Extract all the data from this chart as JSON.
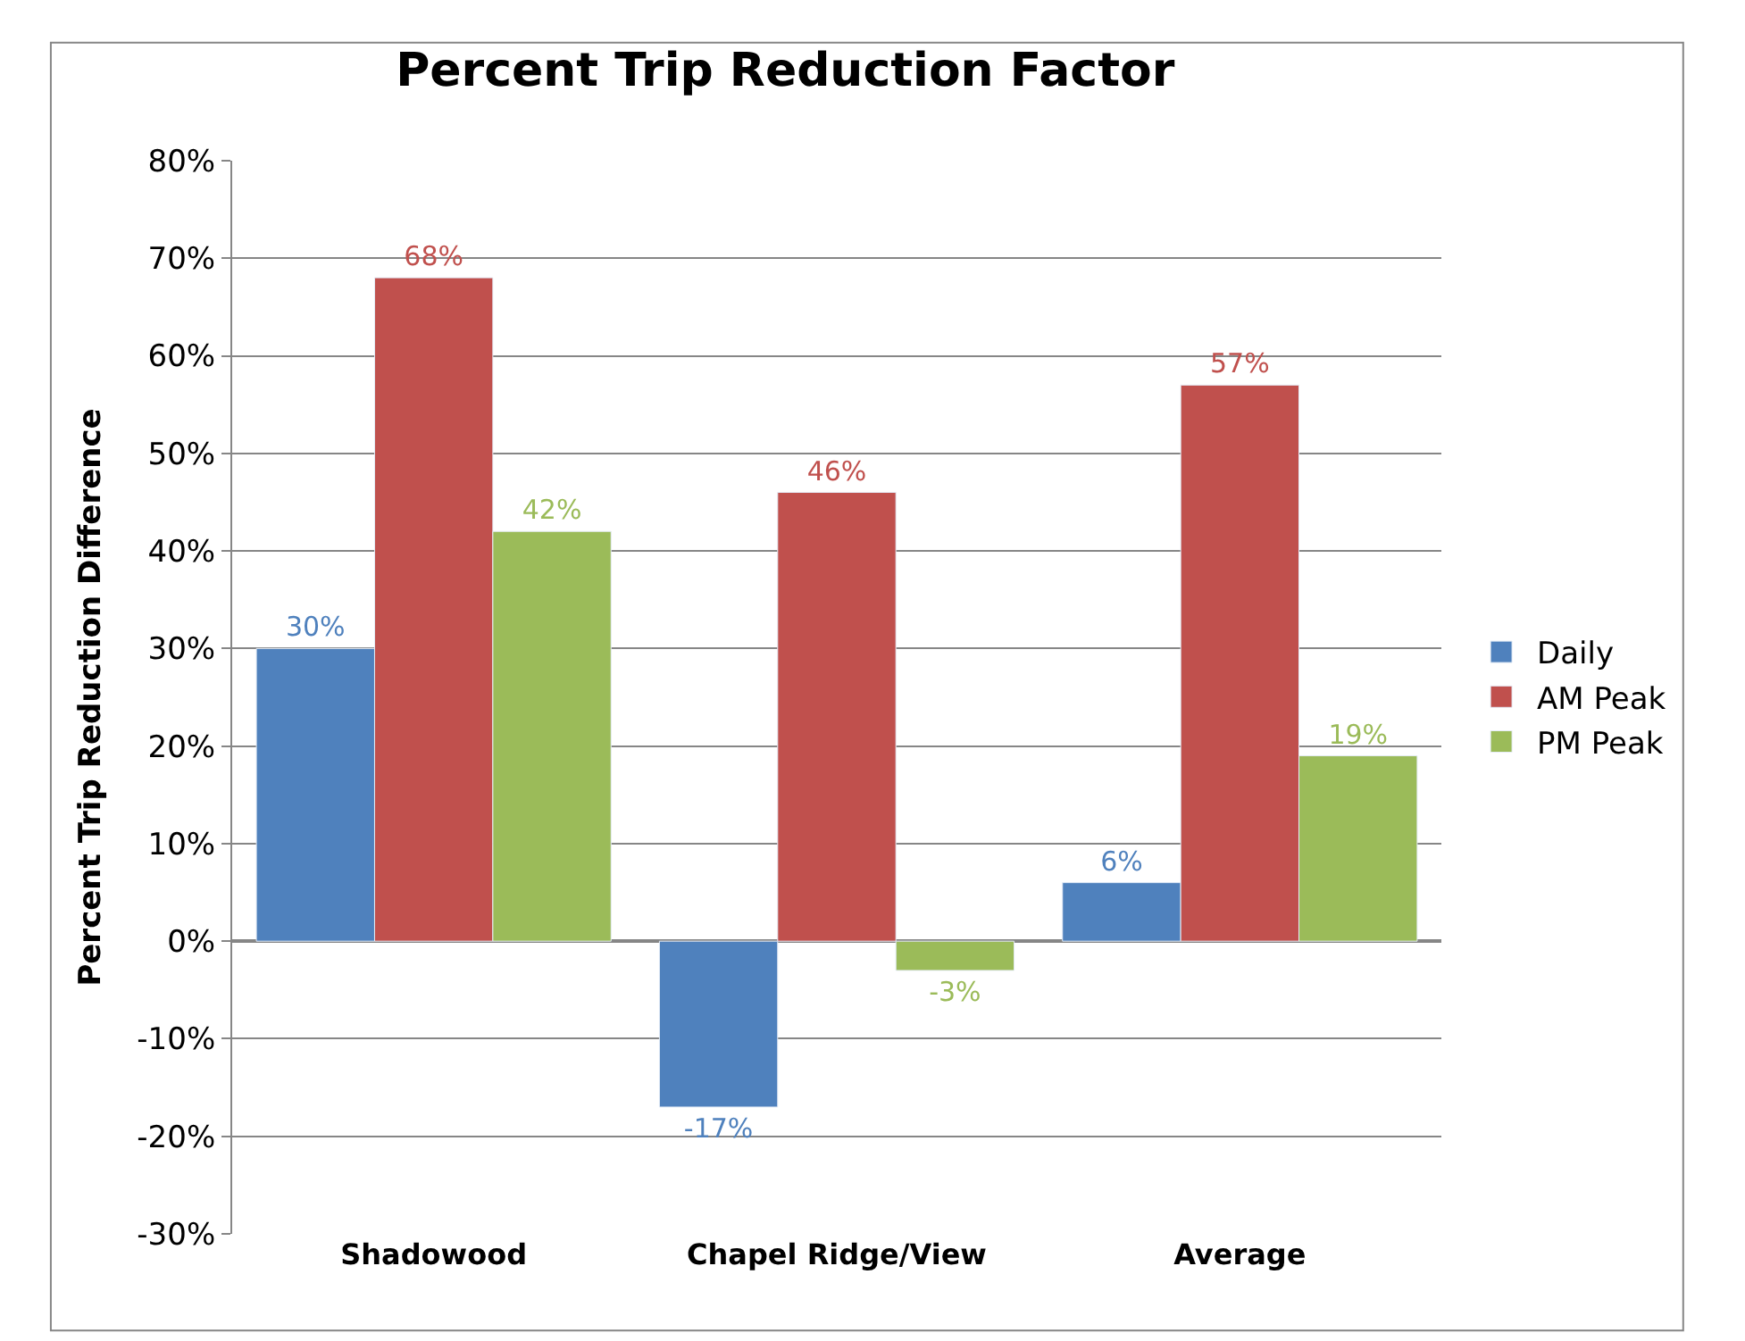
{
  "chart_data": {
    "type": "bar",
    "title": "Percent Trip Reduction Factor",
    "ylabel": "Percent Trip Reduction Difference",
    "categories": [
      "Shadowood",
      "Chapel Ridge/View",
      "Average"
    ],
    "series": [
      {
        "name": "Daily",
        "color": "#4f81bd",
        "values": [
          30,
          -17,
          6
        ],
        "value_labels": [
          "30%",
          "-17%",
          "6%"
        ]
      },
      {
        "name": "AM Peak",
        "color": "#c0504d",
        "values": [
          68,
          46,
          57
        ],
        "value_labels": [
          "68%",
          "46%",
          "57%"
        ]
      },
      {
        "name": "PM Peak",
        "color": "#9bbb59",
        "values": [
          42,
          -3,
          19
        ],
        "value_labels": [
          "42%",
          "-3%",
          "19%"
        ]
      }
    ],
    "ylim": [
      -30,
      80
    ],
    "yticks": [
      {
        "value": -30,
        "label": "-30%"
      },
      {
        "value": -20,
        "label": "-20%"
      },
      {
        "value": -10,
        "label": "-10%"
      },
      {
        "value": 0,
        "label": "0%"
      },
      {
        "value": 10,
        "label": "10%"
      },
      {
        "value": 20,
        "label": "20%"
      },
      {
        "value": 30,
        "label": "30%"
      },
      {
        "value": 40,
        "label": "40%"
      },
      {
        "value": 50,
        "label": "50%"
      },
      {
        "value": 60,
        "label": "60%"
      },
      {
        "value": 70,
        "label": "70%"
      },
      {
        "value": 80,
        "label": "80%"
      }
    ],
    "grid": "y",
    "legend": "right"
  }
}
